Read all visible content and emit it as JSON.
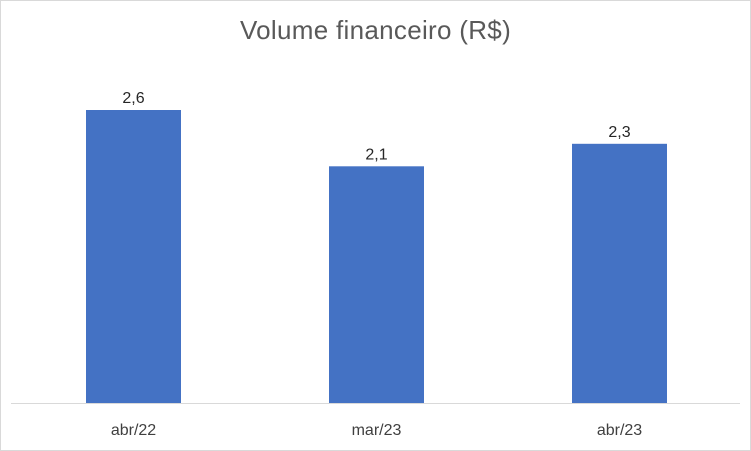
{
  "chart_data": {
    "type": "bar",
    "title": "Volume financeiro (R$)",
    "categories": [
      "abr/22",
      "mar/23",
      "abr/23"
    ],
    "values": [
      2.6,
      2.1,
      2.3
    ],
    "value_labels": [
      "2,6",
      "2,1",
      "2,3"
    ],
    "xlabel": "",
    "ylabel": "",
    "ylim": [
      0,
      2.6
    ],
    "grid": false,
    "legend": "none",
    "bar_color": "#4472C4",
    "axis_color": "#d9d9d9"
  }
}
